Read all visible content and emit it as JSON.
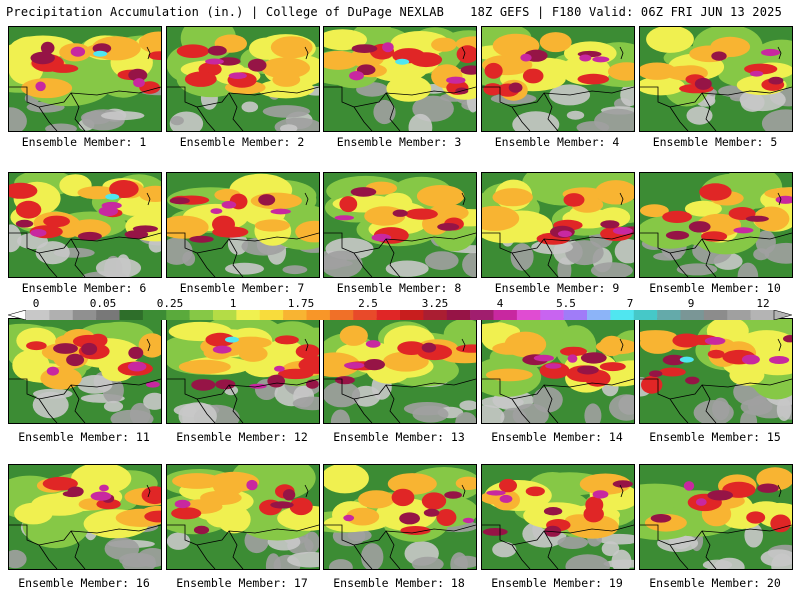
{
  "header": {
    "left_title": "Precipitation Accumulation (in.) | College of DuPage NEXLAB",
    "right_title": "18Z GEFS | F180 Valid: 06Z FRI JUN 13 2025"
  },
  "colorbar": {
    "tick_labels": [
      "0",
      "0.05",
      "0.25",
      "1",
      "1.75",
      "2.5",
      "3.25",
      "4",
      "5.5",
      "7",
      "9",
      "12"
    ],
    "colors": [
      "#c8c8c8",
      "#b0b0b0",
      "#909090",
      "#787878",
      "#2e6e2a",
      "#3c8c34",
      "#5aaa3c",
      "#86c846",
      "#b4dc46",
      "#f0f050",
      "#f8dc3c",
      "#f8b432",
      "#f89628",
      "#f07028",
      "#e84a2a",
      "#e02626",
      "#c81e1e",
      "#aa1e32",
      "#961446",
      "#a01e6e",
      "#c828a0",
      "#e04cd2",
      "#c864f0",
      "#a07cf8",
      "#8cb4f8",
      "#50e6f0",
      "#46c8c8",
      "#64aaaa",
      "#7a9696",
      "#8c8c8c",
      "#a0a0a0",
      "#b4b4b4"
    ]
  },
  "members": [
    {
      "label": "Ensemble Member: 1",
      "level": 0.78
    },
    {
      "label": "Ensemble Member: 2",
      "level": 0.62
    },
    {
      "label": "Ensemble Member: 3",
      "level": 0.74
    },
    {
      "label": "Ensemble Member: 4",
      "level": 0.66
    },
    {
      "label": "Ensemble Member: 5",
      "level": 0.58
    },
    {
      "label": "Ensemble Member: 6",
      "level": 0.8
    },
    {
      "label": "Ensemble Member: 7",
      "level": 0.68
    },
    {
      "label": "Ensemble Member: 8",
      "level": 0.6
    },
    {
      "label": "Ensemble Member: 9",
      "level": 0.62
    },
    {
      "label": "Ensemble Member: 10",
      "level": 0.6
    },
    {
      "label": "Ensemble Member: 11",
      "level": 0.7
    },
    {
      "label": "Ensemble Member: 12",
      "level": 0.78
    },
    {
      "label": "Ensemble Member: 13",
      "level": 0.6
    },
    {
      "label": "Ensemble Member: 14",
      "level": 0.66
    },
    {
      "label": "Ensemble Member: 15",
      "level": 0.82
    },
    {
      "label": "Ensemble Member: 16",
      "level": 0.62
    },
    {
      "label": "Ensemble Member: 17",
      "level": 0.62
    },
    {
      "label": "Ensemble Member: 18",
      "level": 0.54
    },
    {
      "label": "Ensemble Member: 19",
      "level": 0.72
    },
    {
      "label": "Ensemble Member: 20",
      "level": 0.58
    }
  ]
}
